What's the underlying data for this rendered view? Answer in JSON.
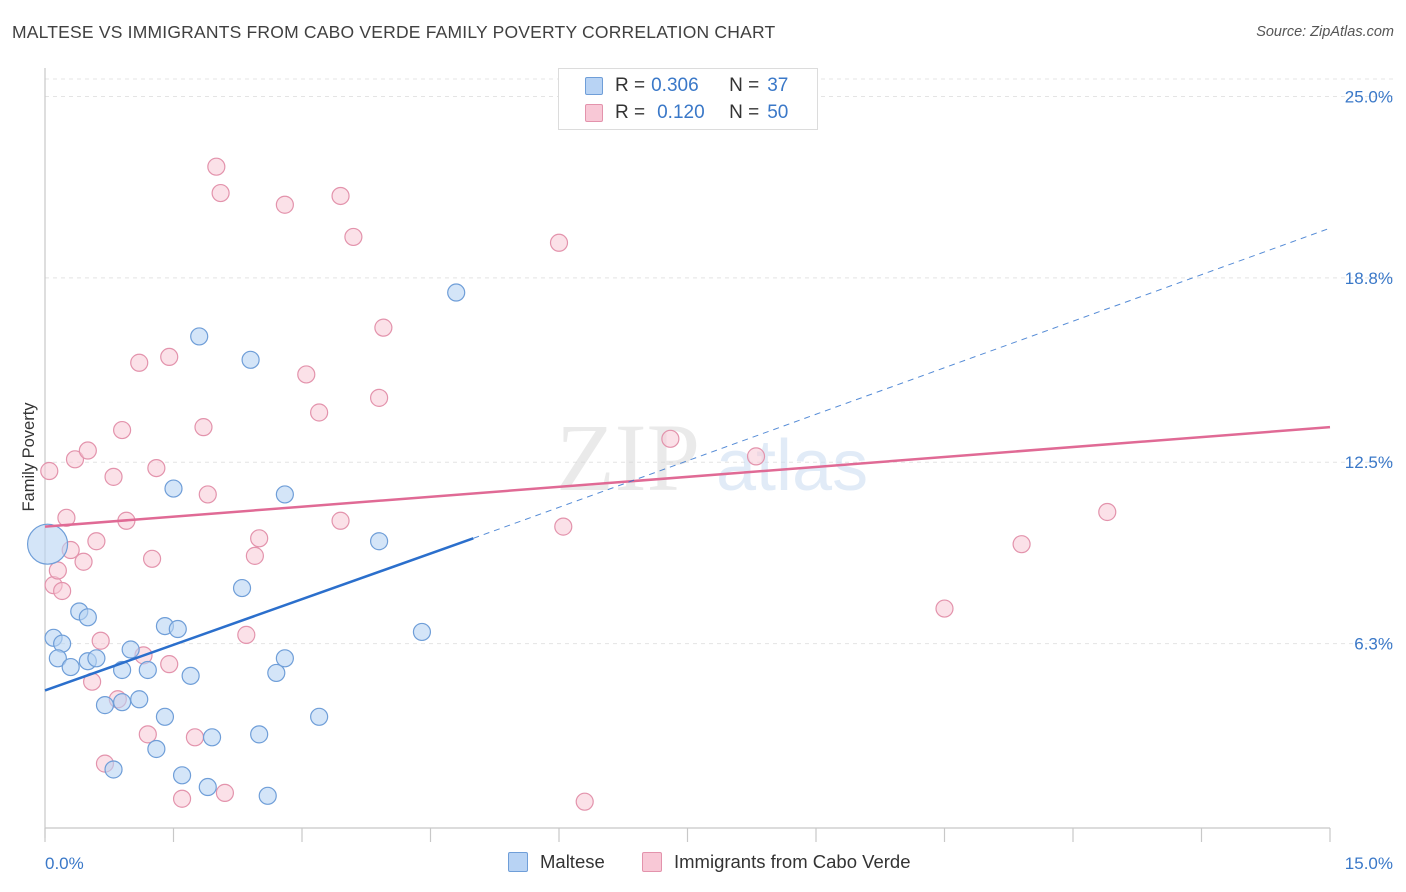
{
  "title": "MALTESE VS IMMIGRANTS FROM CABO VERDE FAMILY POVERTY CORRELATION CHART",
  "source": "Source: ZipAtlas.com",
  "watermark": {
    "zip": "ZIP",
    "atlas": "atlas"
  },
  "legend_top": [
    {
      "r_label": "R =",
      "r_value": "0.306",
      "n_label": "N =",
      "n_value": "37"
    },
    {
      "r_label": "R =",
      "r_value": "0.120",
      "n_label": "N =",
      "n_value": "50"
    }
  ],
  "legend_bottom": [
    "Maltese",
    "Immigrants from Cabo Verde"
  ],
  "colors": {
    "maltese_fill": "#b8d3f4",
    "maltese_stroke": "#6f9ed8",
    "maltese_line": "#2b6fcc",
    "cabo_fill": "#f8c8d6",
    "cabo_stroke": "#e393ac",
    "cabo_line": "#e06a95",
    "tick_label": "#3a78c8",
    "grid": "#e4e4e4"
  },
  "chart_data": {
    "type": "scatter",
    "title": "MALTESE VS IMMIGRANTS FROM CABO VERDE FAMILY POVERTY CORRELATION CHART",
    "xlabel": "",
    "ylabel": "Family Poverty",
    "xlim": [
      0,
      15
    ],
    "ylim": [
      0,
      25.7
    ],
    "x_tick_labels": [
      "0.0%",
      "15.0%"
    ],
    "y_ticks": [
      6.3,
      12.5,
      18.8,
      25.0
    ],
    "y_tick_labels": [
      "6.3%",
      "12.5%",
      "18.8%",
      "25.0%"
    ],
    "grid": true,
    "legend_placement": "top-center and bottom",
    "series": [
      {
        "name": "Maltese",
        "r": 0.306,
        "n": 37,
        "trend": {
          "x": [
            0,
            5.0
          ],
          "y": [
            4.7,
            9.9
          ]
        },
        "trend_extension": {
          "x": [
            5.0,
            15.0
          ],
          "y": [
            9.9,
            20.5
          ]
        },
        "points": [
          {
            "x": 0.03,
            "y": 9.7,
            "big": true
          },
          {
            "x": 0.1,
            "y": 6.5
          },
          {
            "x": 0.2,
            "y": 6.3
          },
          {
            "x": 0.15,
            "y": 5.8
          },
          {
            "x": 0.3,
            "y": 5.5
          },
          {
            "x": 0.4,
            "y": 7.4
          },
          {
            "x": 0.5,
            "y": 7.2
          },
          {
            "x": 0.5,
            "y": 5.7
          },
          {
            "x": 0.6,
            "y": 5.8
          },
          {
            "x": 0.7,
            "y": 4.2
          },
          {
            "x": 0.8,
            "y": 2.0
          },
          {
            "x": 0.9,
            "y": 4.3
          },
          {
            "x": 0.9,
            "y": 5.4
          },
          {
            "x": 1.0,
            "y": 6.1
          },
          {
            "x": 1.1,
            "y": 4.4
          },
          {
            "x": 1.2,
            "y": 5.4
          },
          {
            "x": 1.3,
            "y": 2.7
          },
          {
            "x": 1.4,
            "y": 6.9
          },
          {
            "x": 1.4,
            "y": 3.8
          },
          {
            "x": 1.5,
            "y": 11.6
          },
          {
            "x": 1.55,
            "y": 6.8
          },
          {
            "x": 1.6,
            "y": 1.8
          },
          {
            "x": 1.7,
            "y": 5.2
          },
          {
            "x": 1.8,
            "y": 16.8
          },
          {
            "x": 1.9,
            "y": 1.4
          },
          {
            "x": 1.95,
            "y": 3.1
          },
          {
            "x": 2.3,
            "y": 8.2
          },
          {
            "x": 2.4,
            "y": 16.0
          },
          {
            "x": 2.5,
            "y": 3.2
          },
          {
            "x": 2.6,
            "y": 1.1
          },
          {
            "x": 2.7,
            "y": 5.3
          },
          {
            "x": 2.8,
            "y": 5.8
          },
          {
            "x": 2.8,
            "y": 11.4
          },
          {
            "x": 3.2,
            "y": 3.8
          },
          {
            "x": 3.9,
            "y": 9.8
          },
          {
            "x": 4.4,
            "y": 6.7
          },
          {
            "x": 4.8,
            "y": 18.3
          }
        ]
      },
      {
        "name": "Immigrants from Cabo Verde",
        "r": 0.12,
        "n": 50,
        "trend": {
          "x": [
            0,
            15.0
          ],
          "y": [
            10.3,
            13.7
          ]
        },
        "points": [
          {
            "x": 0.05,
            "y": 12.2
          },
          {
            "x": 0.1,
            "y": 8.3
          },
          {
            "x": 0.15,
            "y": 8.8
          },
          {
            "x": 0.2,
            "y": 8.1
          },
          {
            "x": 0.25,
            "y": 10.6
          },
          {
            "x": 0.3,
            "y": 9.5
          },
          {
            "x": 0.35,
            "y": 12.6
          },
          {
            "x": 0.45,
            "y": 9.1
          },
          {
            "x": 0.5,
            "y": 12.9
          },
          {
            "x": 0.55,
            "y": 5.0
          },
          {
            "x": 0.6,
            "y": 9.8
          },
          {
            "x": 0.65,
            "y": 6.4
          },
          {
            "x": 0.7,
            "y": 2.2
          },
          {
            "x": 0.8,
            "y": 12.0
          },
          {
            "x": 0.85,
            "y": 4.4
          },
          {
            "x": 0.9,
            "y": 13.6
          },
          {
            "x": 0.95,
            "y": 10.5
          },
          {
            "x": 1.1,
            "y": 15.9
          },
          {
            "x": 1.15,
            "y": 5.9
          },
          {
            "x": 1.2,
            "y": 3.2
          },
          {
            "x": 1.25,
            "y": 9.2
          },
          {
            "x": 1.3,
            "y": 12.3
          },
          {
            "x": 1.45,
            "y": 5.6
          },
          {
            "x": 1.45,
            "y": 16.1
          },
          {
            "x": 1.6,
            "y": 1.0
          },
          {
            "x": 1.75,
            "y": 3.1
          },
          {
            "x": 1.85,
            "y": 13.7
          },
          {
            "x": 1.9,
            "y": 11.4
          },
          {
            "x": 2.0,
            "y": 22.6
          },
          {
            "x": 2.05,
            "y": 21.7
          },
          {
            "x": 2.1,
            "y": 1.2
          },
          {
            "x": 2.35,
            "y": 6.6
          },
          {
            "x": 2.45,
            "y": 9.3
          },
          {
            "x": 2.5,
            "y": 9.9
          },
          {
            "x": 2.8,
            "y": 21.3
          },
          {
            "x": 3.05,
            "y": 15.5
          },
          {
            "x": 3.2,
            "y": 14.2
          },
          {
            "x": 3.45,
            "y": 10.5
          },
          {
            "x": 3.45,
            "y": 21.6
          },
          {
            "x": 3.6,
            "y": 20.2
          },
          {
            "x": 3.9,
            "y": 14.7
          },
          {
            "x": 3.95,
            "y": 17.1
          },
          {
            "x": 6.0,
            "y": 20.0
          },
          {
            "x": 6.05,
            "y": 10.3
          },
          {
            "x": 6.3,
            "y": 0.9
          },
          {
            "x": 7.3,
            "y": 13.3
          },
          {
            "x": 8.3,
            "y": 12.7
          },
          {
            "x": 10.5,
            "y": 7.5
          },
          {
            "x": 11.4,
            "y": 9.7
          },
          {
            "x": 12.4,
            "y": 10.8
          }
        ]
      }
    ]
  }
}
